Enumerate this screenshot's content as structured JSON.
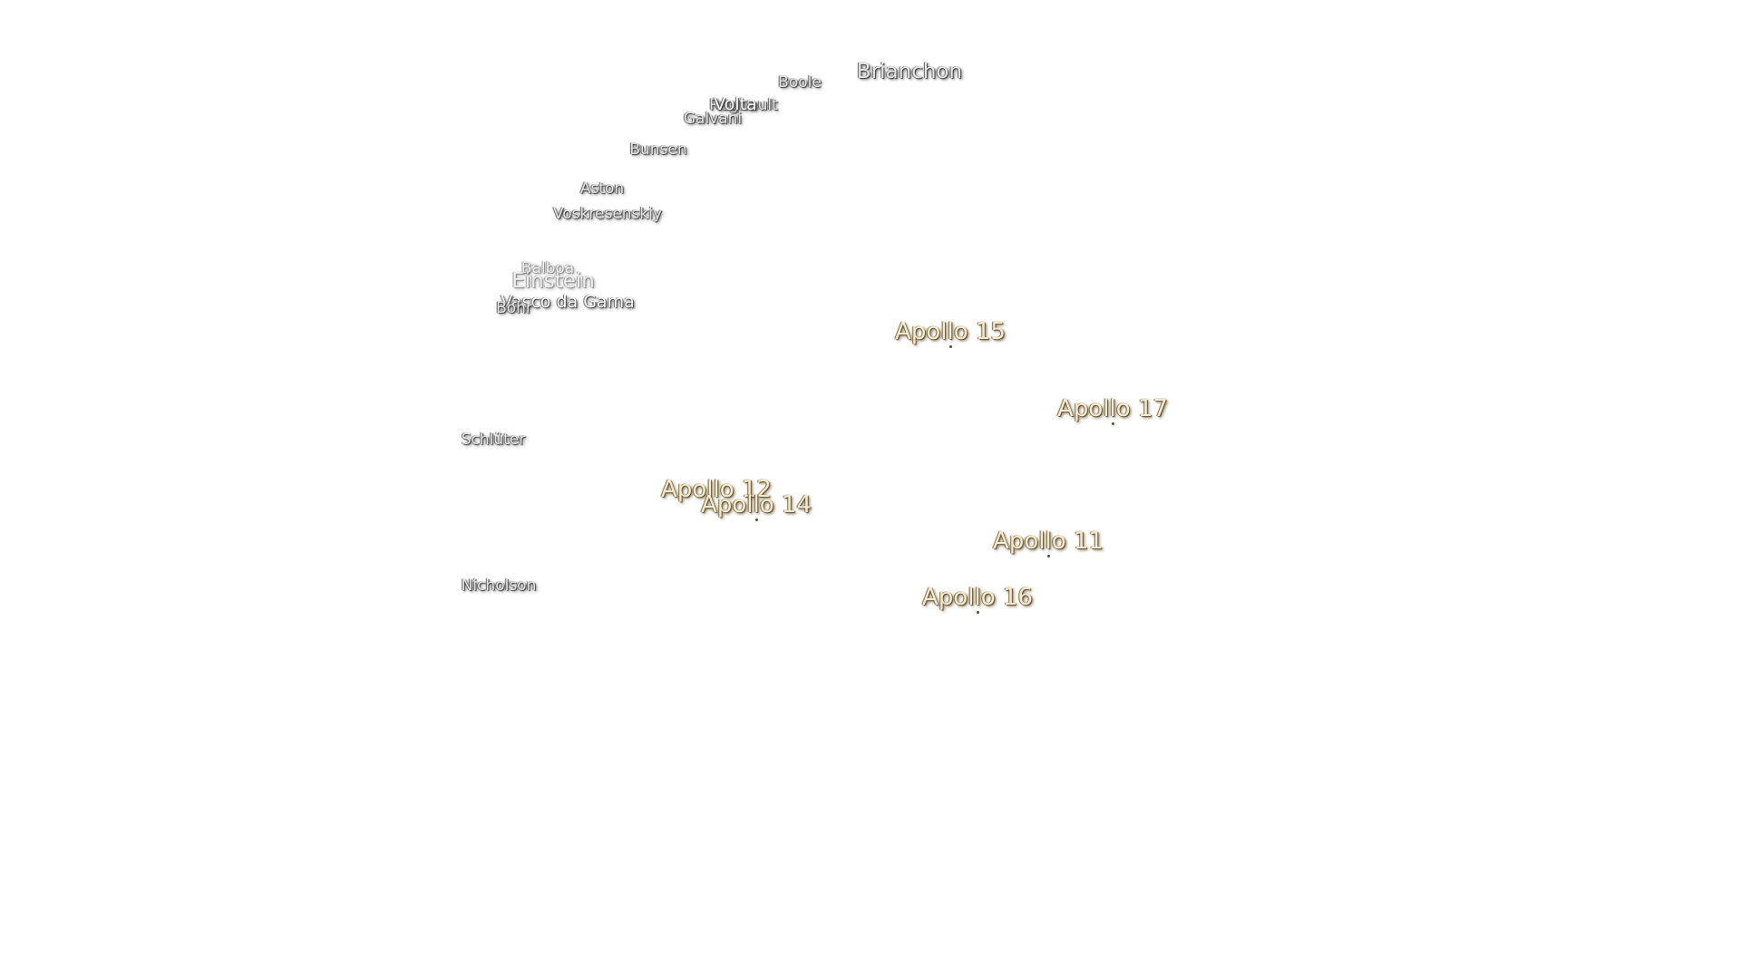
{
  "craters": [
    "Boole",
    "Brianchon",
    "Regnault",
    "Volta",
    "Galvani",
    "Bunsen",
    "Aston",
    "Voskresenskiy",
    "Balboa",
    "Einstein",
    "Vasco da Gama",
    "Bohr",
    "Schlüter",
    "Nicholson"
  ],
  "landing_sites": [
    "Apollo 15",
    "Apollo 17",
    "Apollo 12",
    "Apollo 14",
    "Apollo 11",
    "Apollo 16"
  ]
}
